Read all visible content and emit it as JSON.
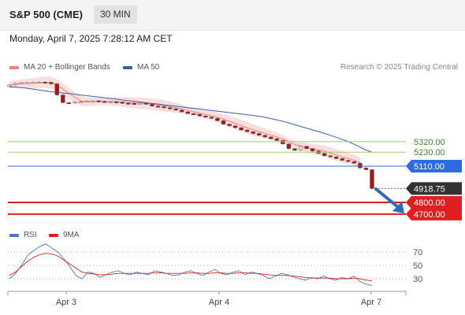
{
  "header": {
    "title": "S&P 500 (CME)",
    "timeframe": "30 MIN"
  },
  "datetime": "Monday, April 7, 2025 7:28:12 AM CET",
  "legend": {
    "ma20": "MA 20 + Bollinger Bands",
    "ma50": "MA 50",
    "credit": "Research © 2025 Trading Central"
  },
  "rsi_legend": {
    "rsi": "RSI",
    "ma": "9MA"
  },
  "colors": {
    "bollinger": "#f6b5b5",
    "ma20": "#f08080",
    "ma50": "#3a5fa8",
    "support": "#e02020",
    "resistance": "#9bcf6f",
    "pivot": "#2f6be0",
    "last": "#333333",
    "arrow": "#2f6bb6",
    "candle_up": "#f2c9c6",
    "candle_down": "#a31818"
  },
  "chart_data": [
    {
      "type": "line",
      "title": "S&P 500 (CME)",
      "x_ticks": [
        "Apr 3",
        "Apr 4",
        "Apr 7"
      ],
      "levels": [
        {
          "label": "5320.00",
          "value": 5320,
          "kind": "resistance"
        },
        {
          "label": "5230.00",
          "value": 5230,
          "kind": "resistance"
        },
        {
          "label": "5110.00",
          "value": 5110,
          "kind": "pivot"
        },
        {
          "label": "4918.75",
          "value": 4918.75,
          "kind": "last"
        },
        {
          "label": "4800.00",
          "value": 4800,
          "kind": "support"
        },
        {
          "label": "4700.00",
          "value": 4700,
          "kind": "support"
        }
      ],
      "series": [
        {
          "name": "Price",
          "values": [
            5805,
            5820,
            5825,
            5826,
            5828,
            5830,
            5828,
            5815,
            5720,
            5655,
            5650,
            5660,
            5662,
            5668,
            5670,
            5665,
            5660,
            5662,
            5658,
            5650,
            5648,
            5646,
            5650,
            5640,
            5625,
            5620,
            5610,
            5600,
            5590,
            5575,
            5560,
            5555,
            5540,
            5530,
            5520,
            5500,
            5470,
            5455,
            5440,
            5420,
            5405,
            5390,
            5375,
            5360,
            5345,
            5330,
            5300,
            5260,
            5245,
            5280,
            5260,
            5240,
            5220,
            5200,
            5190,
            5175,
            5160,
            5150,
            5135,
            5095,
            5080,
            4918.75
          ]
        },
        {
          "name": "MA 50",
          "values": [
            5790,
            5785,
            5780,
            5770,
            5760,
            5750,
            5742,
            5735,
            5728,
            5720,
            5712,
            5704,
            5696,
            5688,
            5680,
            5672,
            5664,
            5656,
            5648,
            5640,
            5632,
            5624,
            5616,
            5608,
            5600,
            5592,
            5584,
            5576,
            5568,
            5560,
            5552,
            5543,
            5534,
            5520,
            5505,
            5490,
            5470,
            5450,
            5430,
            5410,
            5390,
            5368,
            5345,
            5320,
            5290,
            5255,
            5230
          ]
        }
      ],
      "rsi": {
        "ticks": [
          70,
          50,
          30
        ],
        "ylim": [
          10,
          90
        ],
        "rsi_values": [
          30,
          38,
          50,
          65,
          72,
          78,
          82,
          76,
          70,
          60,
          48,
          35,
          30,
          40,
          38,
          32,
          36,
          40,
          42,
          38,
          36,
          40,
          38,
          36,
          42,
          40,
          38,
          35,
          36,
          40,
          42,
          38,
          35,
          40,
          44,
          38,
          36,
          40,
          42,
          36,
          40,
          38,
          35,
          30,
          34,
          38,
          36,
          33,
          30,
          28,
          32,
          30,
          34,
          30,
          28,
          32,
          30,
          34,
          26,
          22,
          20
        ],
        "ma_values": [
          35,
          40,
          48,
          56,
          62,
          66,
          68,
          67,
          64,
          58,
          52,
          46,
          40,
          38,
          37,
          36,
          36,
          37,
          38,
          38,
          38,
          38,
          38,
          38,
          39,
          39,
          38,
          38,
          38,
          38,
          39,
          39,
          38,
          38,
          39,
          39,
          38,
          38,
          39,
          39,
          38,
          38,
          37,
          36,
          35,
          35,
          35,
          34,
          33,
          32,
          31,
          31,
          31,
          31,
          30,
          30,
          30,
          31,
          30,
          28,
          27
        ]
      }
    }
  ]
}
